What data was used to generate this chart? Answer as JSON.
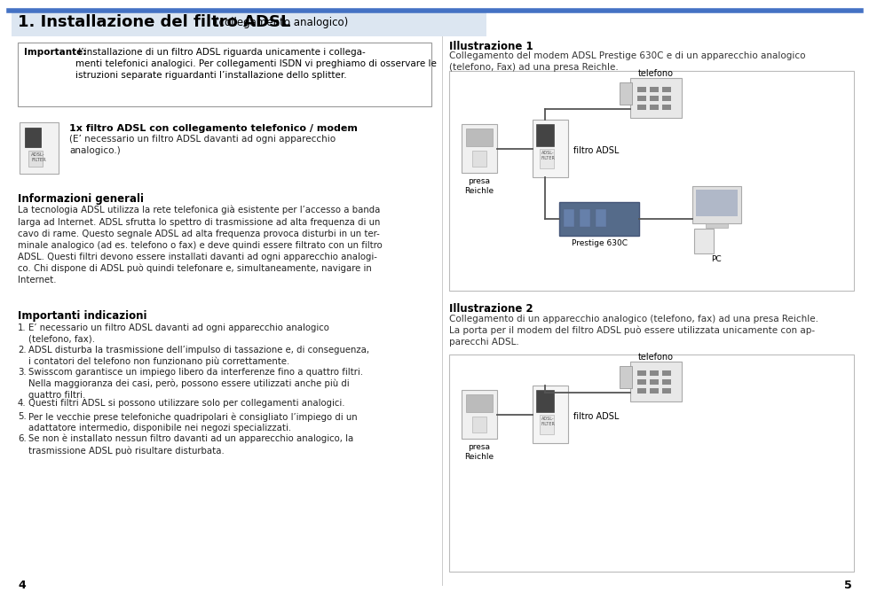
{
  "bg_color": "#ffffff",
  "title_bg_color": "#dce6f1",
  "title_text": "1. Installazione del filtro ADSL",
  "title_sub": "(collegamento analogico)",
  "border_color": "#4472c4",
  "text_color": "#222222",
  "importante_bold": "Importante:",
  "importante_rest": " l’installazione di un filtro ADSL riguarda unicamente i collega-\nmenti telefonici analogici. Per collegamenti ISDN vi preghiamo di osservare le\nistruzioni separate riguardanti l’installazione dello splitter.",
  "filtro_bold": "1x filtro ADSL con collegamento telefonico / modem",
  "filtro_normal": "(E’ necessario un filtro ADSL davanti ad ogni apparecchio\nanalogico.)",
  "info_title": "Informazioni generali",
  "info_text": "La tecnologia ADSL utilizza la rete telefonica già esistente per l’accesso a banda\nlarga ad Internet. ADSL sfrutta lo spettro di trasmissione ad alta frequenza di un\ncavo di rame. Questo segnale ADSL ad alta frequenza provoca disturbi in un ter-\nminale analogico (ad es. telefono o fax) e deve quindi essere filtrato con un filtro\nADSL. Questi filtri devono essere installati davanti ad ogni apparecchio analogi-\nco. Chi dispone di ADSL può quindi telefonare e, simultaneamente, navigare in\nInternet.",
  "importanti_title": "Importanti indicazioni",
  "importanti_items": [
    "E’ necessario un filtro ADSL davanti ad ogni apparecchio analogico\n(telefono, fax).",
    "ADSL disturba la trasmissione dell’impulso di tassazione e, di conseguenza,\ni contatori del telefono non funzionano più correttamente.",
    "Swisscom garantisce un impiego libero da interferenze fino a quattro filtri.\nNella maggioranza dei casi, però, possono essere utilizzati anche più di\nquattro filtri.",
    "Questi filtri ADSL si possono utilizzare solo per collegamenti analogici.",
    "Per le vecchie prese telefoniche quadripolari è consigliato l’impiego di un\nadattatore intermedio, disponibile nei negozi specializzati.",
    "Se non è installato nessun filtro davanti ad un apparecchio analogico, la\ntrasmissione ADSL può risultare disturbata."
  ],
  "illus1_title": "Illustrazione 1",
  "illus1_text": "Collegamento del modem ADSL Prestige 630C e di un apparecchio analogico\n(telefono, Fax) ad una presa Reichle.",
  "illus2_title": "Illustrazione 2",
  "illus2_text": "Collegamento di un apparecchio analogico (telefono, fax) ad una presa Reichle.\nLa porta per il modem del filtro ADSL può essere utilizzata unicamente con ap-\nparecchi ADSL.",
  "page_left": "4",
  "page_right": "5"
}
